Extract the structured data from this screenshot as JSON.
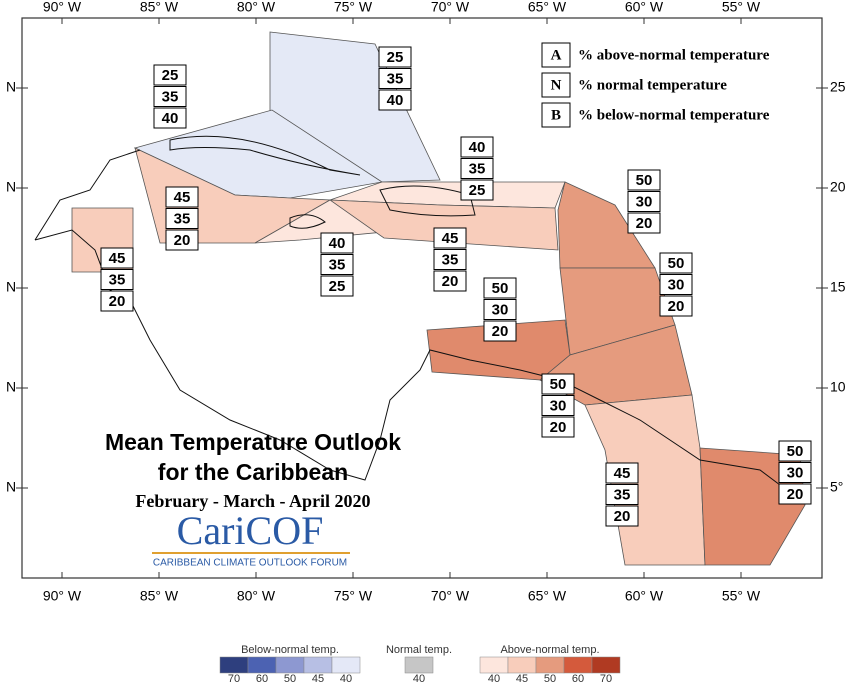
{
  "title": {
    "line1": "Mean Temperature Outlook",
    "line2": "for the Caribbean",
    "period": "February - March - April 2020"
  },
  "logo": {
    "name": "CariCOF",
    "subtitle": "CARIBBEAN CLIMATE OUTLOOK FORUM"
  },
  "key": [
    {
      "letter": "A",
      "text": "% above-normal temperature"
    },
    {
      "letter": "N",
      "text": "% normal temperature"
    },
    {
      "letter": "B",
      "text": "% below-normal temperature"
    }
  ],
  "lon_labels": [
    "90° W",
    "85° W",
    "80° W",
    "75° W",
    "70° W",
    "65° W",
    "60° W",
    "55° W"
  ],
  "lat_labels_left": [
    "N",
    "N",
    "N",
    "N",
    "N"
  ],
  "lat_labels_right": [
    "25",
    "20",
    "15",
    "10",
    "5°"
  ],
  "regions": [
    {
      "values": [
        25,
        35,
        40
      ],
      "color": "#e4e9f6"
    },
    {
      "values": [
        25,
        35,
        40
      ],
      "color": "#e4e9f6"
    },
    {
      "values": [
        45,
        35,
        20
      ],
      "color": "#f8cdbb"
    },
    {
      "values": [
        40,
        35,
        25
      ],
      "color": "#fde6dd"
    },
    {
      "values": [
        40,
        35,
        25
      ],
      "color": "#fde6dd"
    },
    {
      "values": [
        45,
        35,
        20
      ],
      "color": "#f8cdbb"
    },
    {
      "values": [
        45,
        35,
        20
      ],
      "color": "#f8cdbb"
    },
    {
      "values": [
        50,
        30,
        20
      ],
      "color": "#e59b7e"
    },
    {
      "values": [
        50,
        30,
        20
      ],
      "color": "#e59b7e"
    },
    {
      "values": [
        50,
        30,
        20
      ],
      "color": "#e08a6c"
    },
    {
      "values": [
        50,
        30,
        20
      ],
      "color": "#e59b7e"
    },
    {
      "values": [
        45,
        35,
        20
      ],
      "color": "#f8cdbb"
    },
    {
      "values": [
        50,
        30,
        20
      ],
      "color": "#e08a6c"
    }
  ],
  "scale": {
    "below": {
      "title": "Below-normal temp.",
      "labels": [
        70,
        60,
        50,
        45,
        40
      ],
      "colors": [
        "#2e3f7e",
        "#4c62b2",
        "#8d98d1",
        "#b7bfe4",
        "#e4e8f7"
      ]
    },
    "normal": {
      "title": "Normal temp.",
      "labels": [
        40
      ],
      "colors": [
        "#c6c6c6"
      ]
    },
    "above": {
      "title": "Above-normal temp.",
      "labels": [
        40,
        45,
        50,
        60,
        70
      ],
      "colors": [
        "#fde6dd",
        "#f8cdbb",
        "#e59b7e",
        "#d45a3c",
        "#b03a22"
      ]
    }
  }
}
